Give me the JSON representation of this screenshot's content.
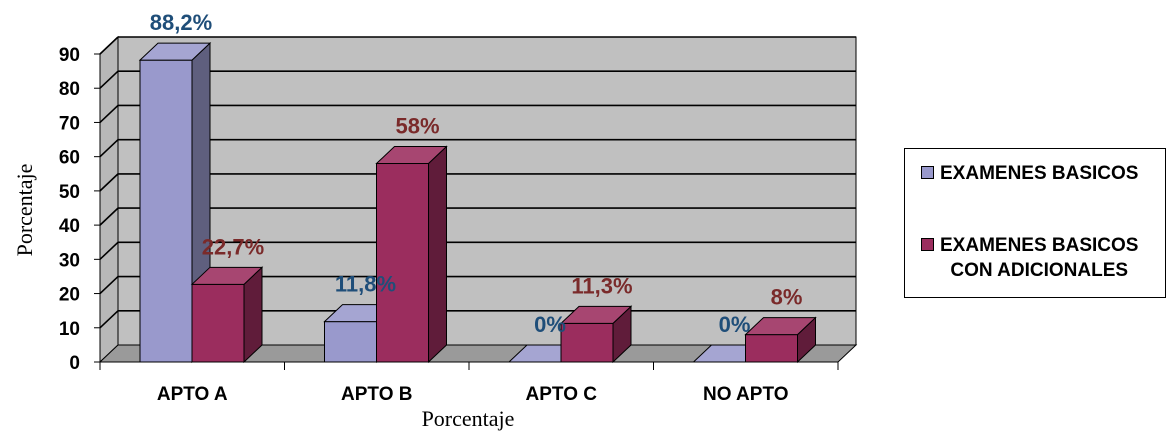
{
  "chart_data": {
    "type": "bar",
    "title": "",
    "xlabel": "Porcentaje",
    "ylabel": "Porcentaje",
    "ylim": [
      0,
      90
    ],
    "yticks": [
      0,
      10,
      20,
      30,
      40,
      50,
      60,
      70,
      80,
      90
    ],
    "grid": true,
    "legend_position": "right",
    "categories": [
      "APTO A",
      "APTO B",
      "APTO C",
      "NO APTO"
    ],
    "series": [
      {
        "name": "EXAMENES BASICOS",
        "values": [
          88.2,
          11.8,
          0,
          0
        ],
        "labels": [
          "88,2%",
          "11,8%",
          "0%",
          "0%"
        ],
        "color": "#9999cc",
        "label_color": "#1f4e79"
      },
      {
        "name": "EXAMENES BASICOS\nCON ADICIONALES",
        "values": [
          22.7,
          58,
          11.3,
          8
        ],
        "labels": [
          "22,7%",
          "58%",
          "11,3%",
          "8%"
        ],
        "color": "#9b2d5e",
        "label_color": "#7a2a2a"
      }
    ],
    "plot_background": "#c0c0c0"
  }
}
